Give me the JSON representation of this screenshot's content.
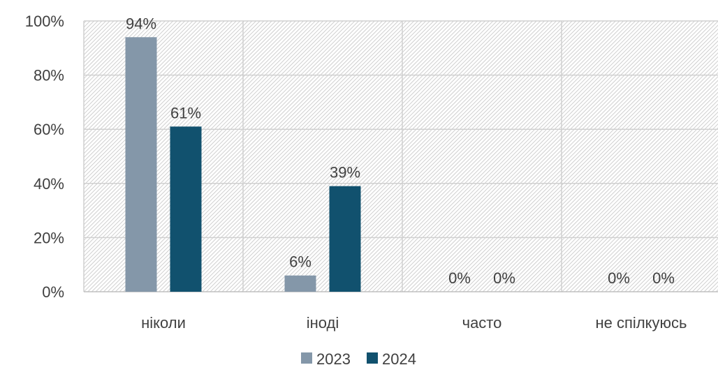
{
  "chart_data": {
    "type": "bar",
    "categories": [
      "ніколи",
      "іноді",
      "часто",
      "не спілкуюсь"
    ],
    "series": [
      {
        "name": "2023",
        "values": [
          94,
          6,
          0,
          0
        ],
        "color": "#8497a9"
      },
      {
        "name": "2024",
        "values": [
          61,
          39,
          0,
          0
        ],
        "color": "#11516e"
      }
    ],
    "data_labels": [
      [
        "94%",
        "6%",
        "0%",
        "0%"
      ],
      [
        "61%",
        "39%",
        "0%",
        "0%"
      ]
    ],
    "y_ticks": [
      "0%",
      "20%",
      "40%",
      "60%",
      "80%",
      "100%"
    ],
    "ylim": [
      0,
      100
    ],
    "grid": true,
    "plot_background": "hatched",
    "legend": "bottom-center"
  }
}
